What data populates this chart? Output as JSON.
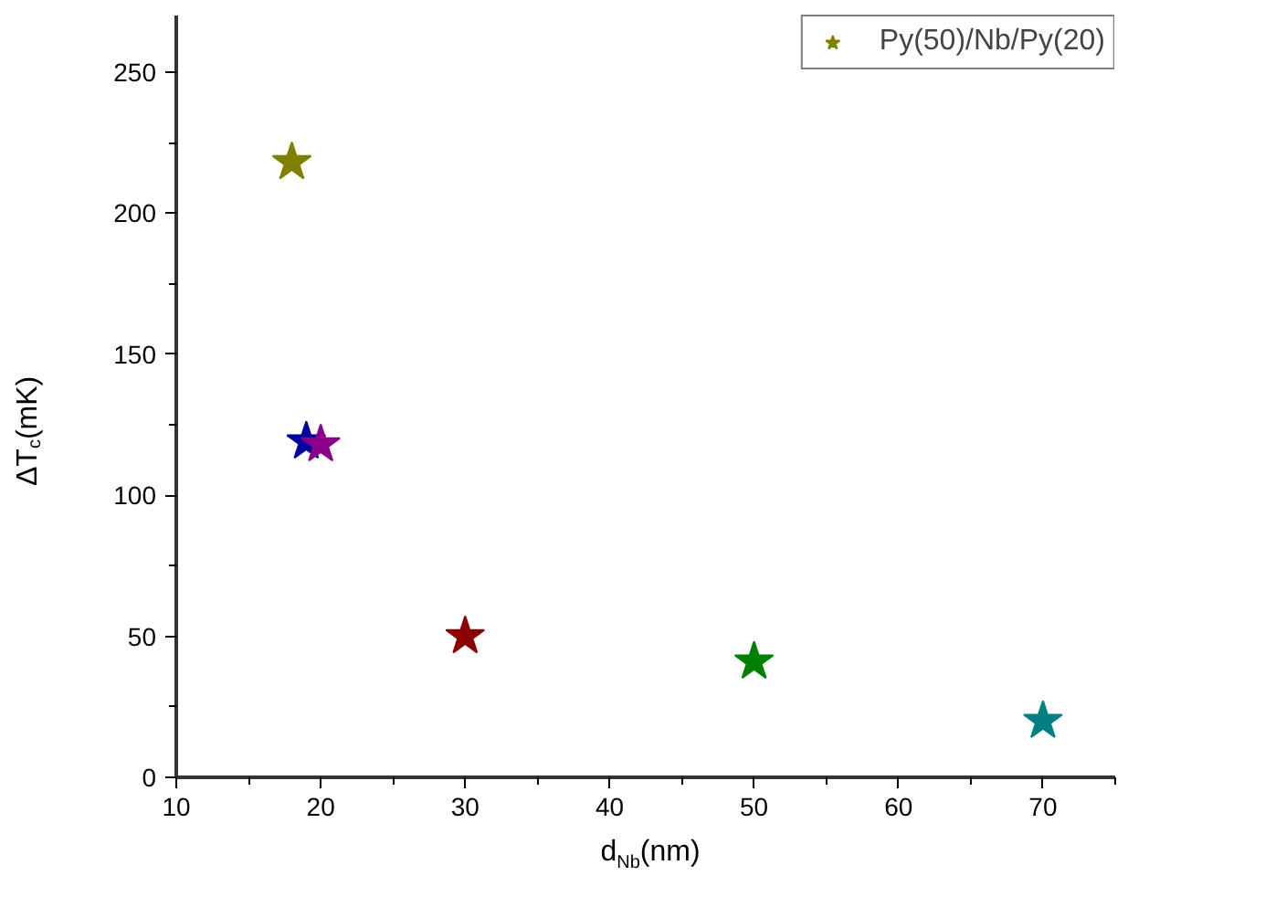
{
  "chart_data": {
    "type": "scatter",
    "xlabel": "d$_{Nb}$(nm)",
    "ylabel": "ΔT$_{c}$(mK)",
    "x": [
      18,
      19,
      20,
      30,
      50,
      70
    ],
    "series": [
      {
        "name": "Py(50)/Nb/Py(20)",
        "values": [
          218,
          119,
          118,
          50,
          41,
          20
        ],
        "colors": [
          "#808000",
          "#0000a0",
          "#8b008b",
          "#8b0000",
          "#008000",
          "#008080"
        ]
      }
    ],
    "xlim": [
      10,
      75
    ],
    "xticks": [
      10,
      20,
      30,
      40,
      50,
      60,
      70
    ],
    "ylim": [
      0,
      270
    ],
    "yticks": [
      0,
      50,
      100,
      150,
      200,
      250
    ],
    "marker": "star",
    "legend": "top right",
    "grid": false
  }
}
